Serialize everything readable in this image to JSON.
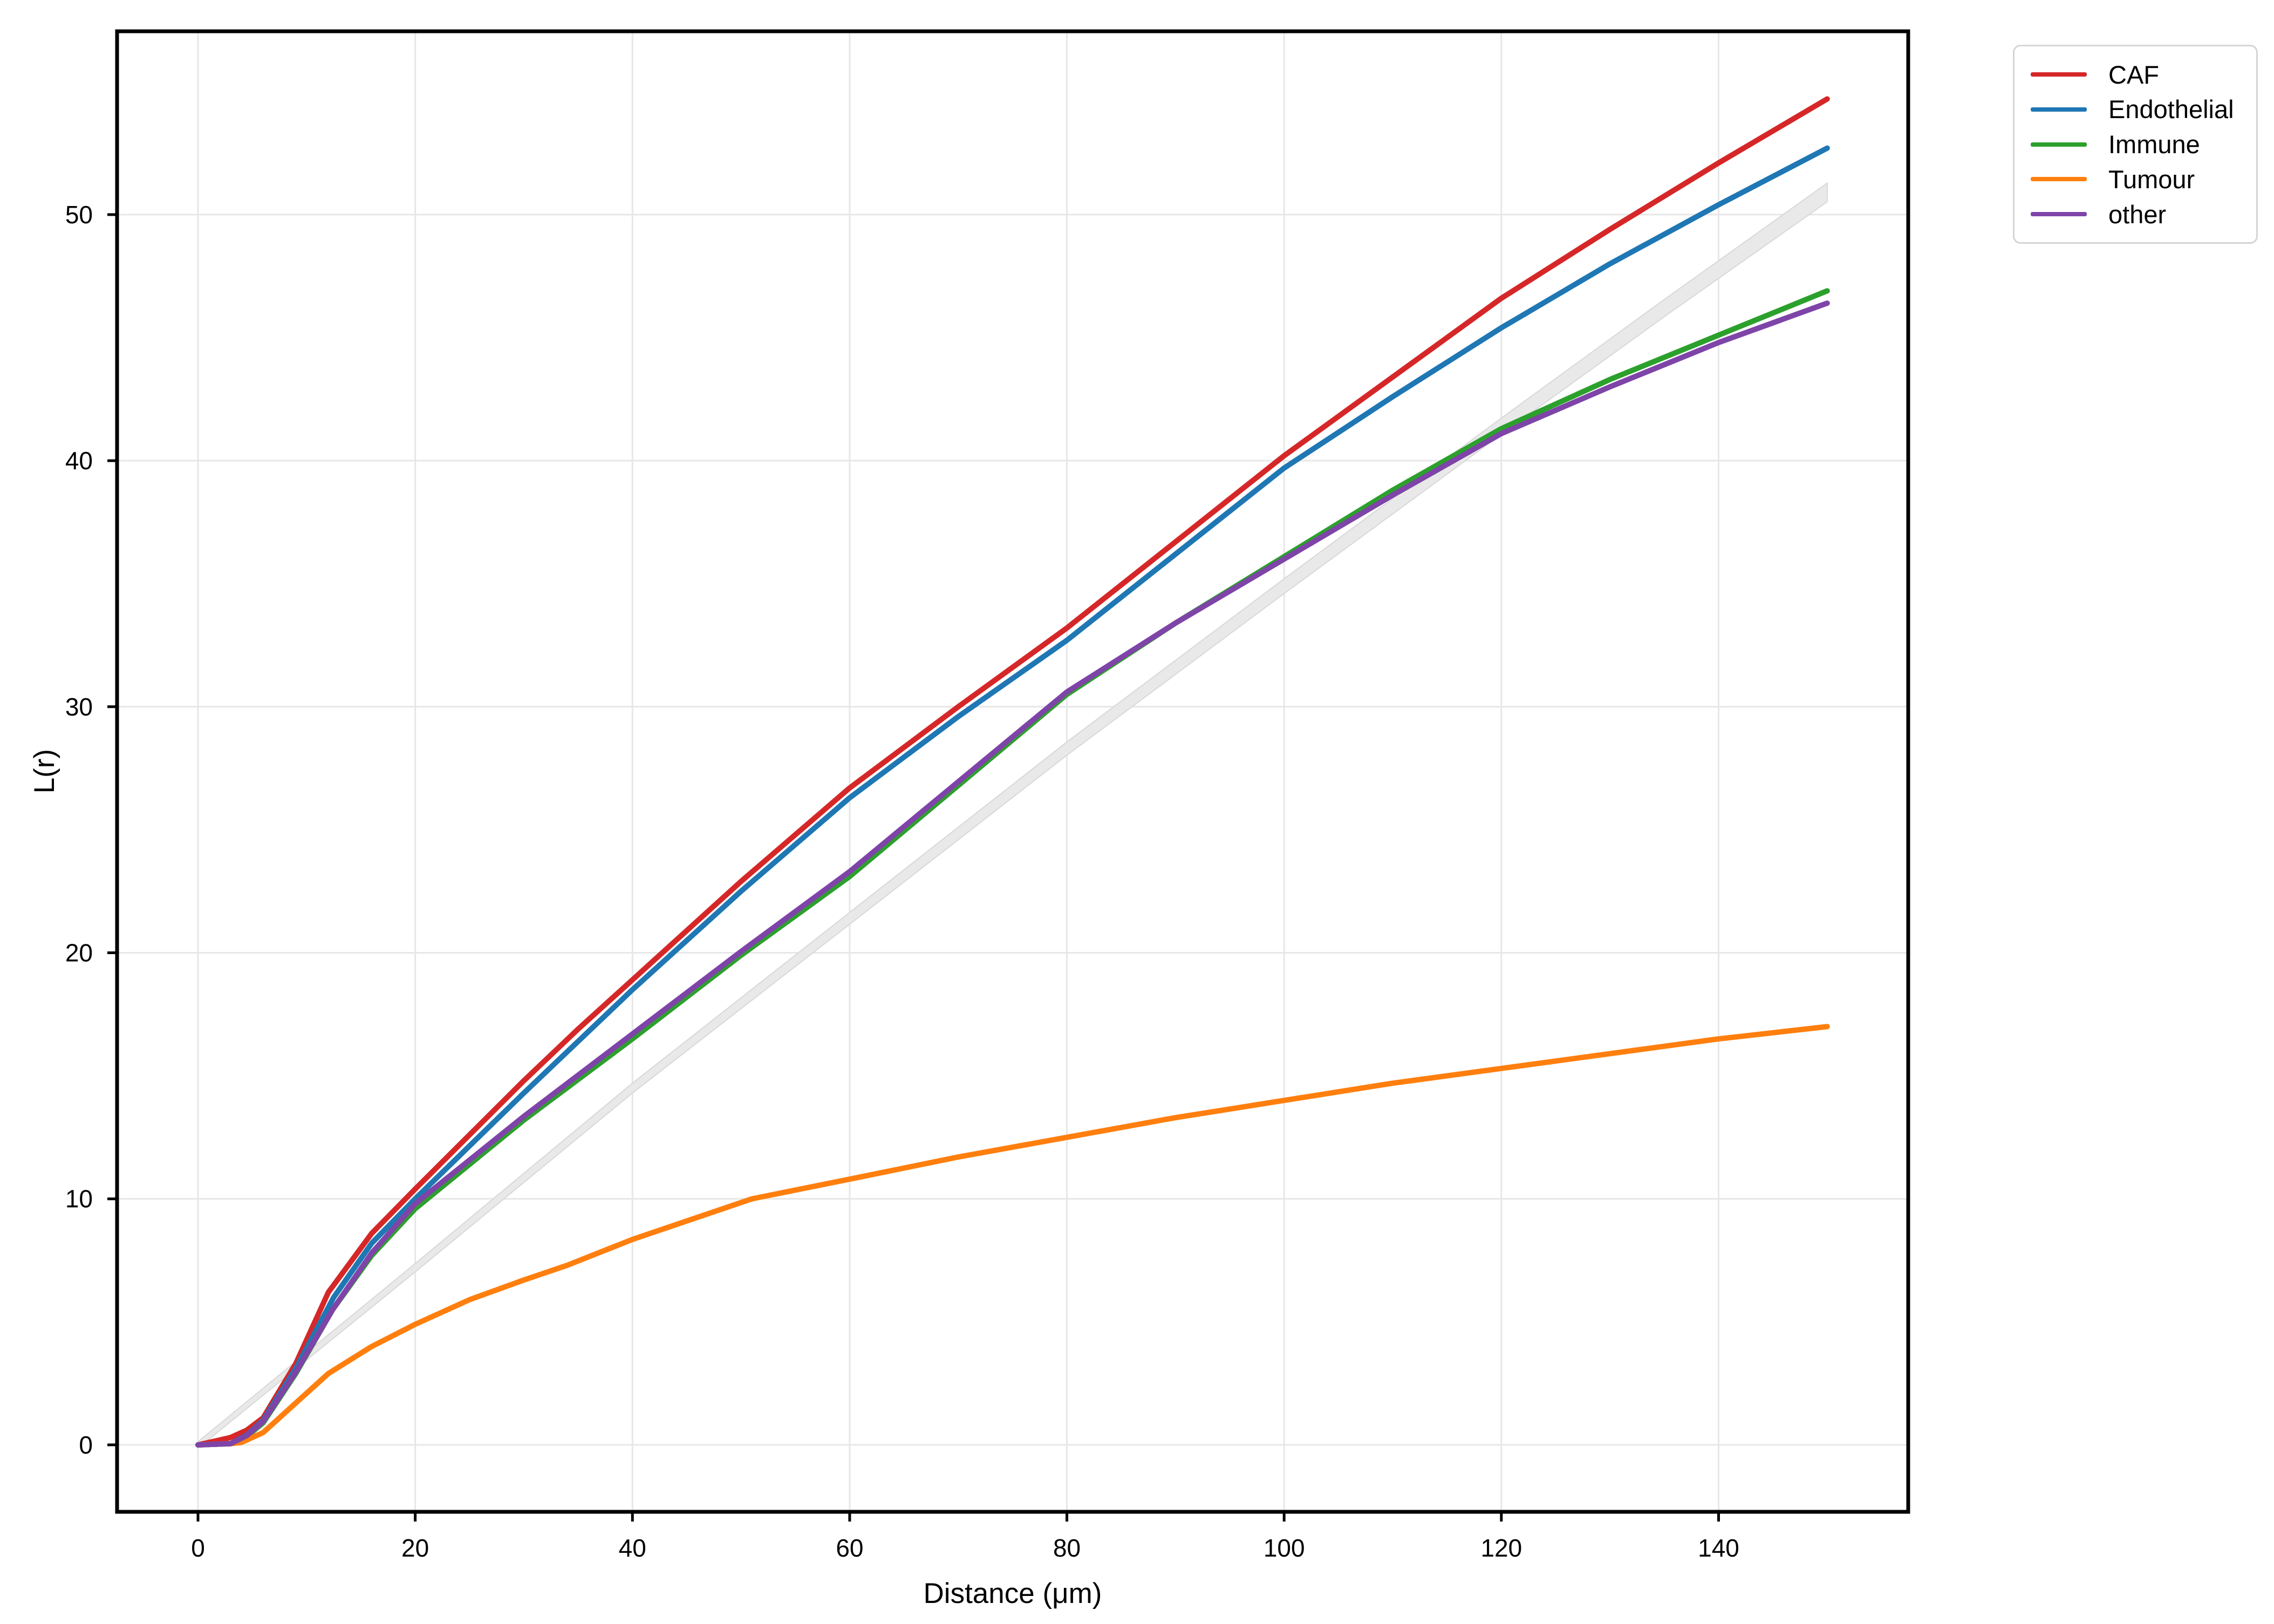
{
  "chart_data": {
    "type": "line",
    "title": "",
    "xlabel": "Distance (μm)",
    "ylabel": "L(r)",
    "xticks": [
      0,
      20,
      40,
      60,
      80,
      100,
      120,
      140
    ],
    "yticks": [
      0,
      10,
      20,
      30,
      40,
      50
    ],
    "xlim": [
      -7.45,
      157.46
    ],
    "ylim": [
      -2.72,
      57.45
    ],
    "grid": true,
    "background": "#ffffff",
    "grid_color": "#e7e7e7",
    "axis_color": "#000000",
    "legend_position": "outside-top-right",
    "envelope": {
      "name": "theoretical-band",
      "fill": "#e9e9e9",
      "edge": "#d8d8d8",
      "points": [
        {
          "x": 0,
          "y": 0,
          "hw": 0.13
        },
        {
          "x": 20,
          "y": 7.2,
          "hw": 0.17
        },
        {
          "x": 40,
          "y": 14.5,
          "hw": 0.2
        },
        {
          "x": 60,
          "y": 21.4,
          "hw": 0.24
        },
        {
          "x": 80,
          "y": 28.3,
          "hw": 0.27
        },
        {
          "x": 100,
          "y": 34.9,
          "hw": 0.3
        },
        {
          "x": 120,
          "y": 41.4,
          "hw": 0.33
        },
        {
          "x": 135,
          "y": 46.2,
          "hw": 0.35
        },
        {
          "x": 150,
          "y": 50.9,
          "hw": 0.38
        }
      ]
    },
    "series": [
      {
        "name": "CAF",
        "color": "#d62728",
        "points": [
          [
            0,
            0
          ],
          [
            1.5,
            0.15
          ],
          [
            3,
            0.3
          ],
          [
            4.5,
            0.6
          ],
          [
            6,
            1.1
          ],
          [
            9,
            3.3
          ],
          [
            12,
            6.2
          ],
          [
            16,
            8.6
          ],
          [
            20,
            10.4
          ],
          [
            25,
            12.6
          ],
          [
            30,
            14.8
          ],
          [
            35,
            16.9
          ],
          [
            40,
            18.9
          ],
          [
            45,
            20.9
          ],
          [
            50,
            22.9
          ],
          [
            55,
            24.8
          ],
          [
            60,
            26.7
          ],
          [
            70,
            30.0
          ],
          [
            80,
            33.2
          ],
          [
            90,
            36.7
          ],
          [
            100,
            40.2
          ],
          [
            110,
            43.4
          ],
          [
            120,
            46.6
          ],
          [
            130,
            49.4
          ],
          [
            140,
            52.1
          ],
          [
            150,
            54.7
          ]
        ]
      },
      {
        "name": "Endothelial",
        "color": "#1f77b4",
        "points": [
          [
            0,
            0
          ],
          [
            3,
            0.05
          ],
          [
            4.5,
            0.4
          ],
          [
            6,
            1.0
          ],
          [
            9,
            3.1
          ],
          [
            12.5,
            6.0
          ],
          [
            16,
            8.2
          ],
          [
            20,
            10.0
          ],
          [
            30,
            14.3
          ],
          [
            40,
            18.5
          ],
          [
            50,
            22.5
          ],
          [
            60,
            26.3
          ],
          [
            70,
            29.6
          ],
          [
            80,
            32.7
          ],
          [
            90,
            36.2
          ],
          [
            100,
            39.7
          ],
          [
            110,
            42.6
          ],
          [
            120,
            45.4
          ],
          [
            130,
            48.0
          ],
          [
            140,
            50.4
          ],
          [
            150,
            52.7
          ]
        ]
      },
      {
        "name": "Immune",
        "color": "#2ca02c",
        "points": [
          [
            0,
            0
          ],
          [
            3,
            0.05
          ],
          [
            4.5,
            0.35
          ],
          [
            6,
            0.9
          ],
          [
            9,
            2.9
          ],
          [
            12.4,
            5.5
          ],
          [
            16,
            7.7
          ],
          [
            20,
            9.6
          ],
          [
            30,
            13.2
          ],
          [
            40,
            16.5
          ],
          [
            50,
            19.9
          ],
          [
            60,
            23.1
          ],
          [
            70,
            26.8
          ],
          [
            80,
            30.5
          ],
          [
            90,
            33.4
          ],
          [
            100,
            36.1
          ],
          [
            110,
            38.8
          ],
          [
            120,
            41.3
          ],
          [
            130,
            43.3
          ],
          [
            140,
            45.1
          ],
          [
            150,
            46.9
          ]
        ]
      },
      {
        "name": "Tumour",
        "color": "#ff7f0e",
        "points": [
          [
            0,
            0
          ],
          [
            3,
            0.05
          ],
          [
            4,
            0.1
          ],
          [
            6,
            0.5
          ],
          [
            9,
            1.7
          ],
          [
            12,
            2.9
          ],
          [
            16,
            4.0
          ],
          [
            20,
            4.9
          ],
          [
            25,
            5.9
          ],
          [
            30,
            6.7
          ],
          [
            34,
            7.3
          ],
          [
            40,
            8.35
          ],
          [
            45,
            9.1
          ],
          [
            51,
            10.0
          ],
          [
            60,
            10.8
          ],
          [
            70,
            11.7
          ],
          [
            80,
            12.5
          ],
          [
            90,
            13.3
          ],
          [
            100,
            14.0
          ],
          [
            110,
            14.7
          ],
          [
            120,
            15.3
          ],
          [
            130,
            15.9
          ],
          [
            140,
            16.5
          ],
          [
            150,
            17.0
          ]
        ]
      },
      {
        "name": "other",
        "color": "#7e44a8",
        "points": [
          [
            0,
            0
          ],
          [
            3,
            0.05
          ],
          [
            4.5,
            0.38
          ],
          [
            6,
            0.95
          ],
          [
            9,
            2.95
          ],
          [
            12.4,
            5.5
          ],
          [
            16,
            7.8
          ],
          [
            20,
            9.8
          ],
          [
            30,
            13.35
          ],
          [
            40,
            16.7
          ],
          [
            50,
            20.05
          ],
          [
            60,
            23.3
          ],
          [
            70,
            26.95
          ],
          [
            80,
            30.6
          ],
          [
            90,
            33.4
          ],
          [
            100,
            36.0
          ],
          [
            110,
            38.6
          ],
          [
            120,
            41.1
          ],
          [
            130,
            43.0
          ],
          [
            140,
            44.8
          ],
          [
            150,
            46.4
          ]
        ]
      }
    ]
  }
}
